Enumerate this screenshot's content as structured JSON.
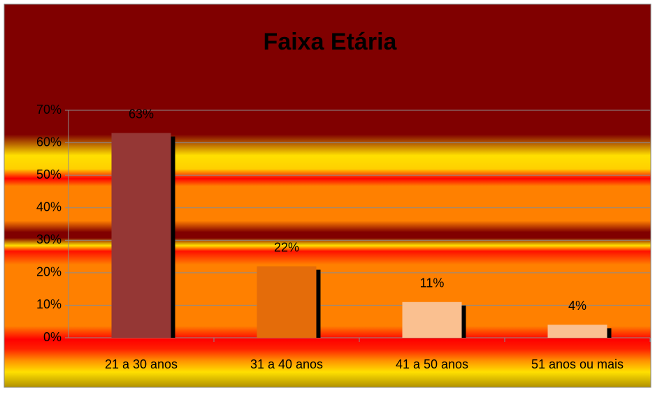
{
  "chart_data": {
    "type": "bar",
    "title": "Faixa Etária",
    "categories": [
      "21 a 30 anos",
      "31 a 40 anos",
      "41 a 50 anos",
      "51 anos ou mais"
    ],
    "values": [
      63,
      22,
      11,
      4
    ],
    "value_labels": [
      "63%",
      "22%",
      "11%",
      "4%"
    ],
    "colors": [
      "#953735",
      "#e46c0a",
      "#fac090",
      "#fac090"
    ],
    "ylim": [
      0,
      70
    ],
    "yticks": [
      {
        "value": 0,
        "label": "0%"
      },
      {
        "value": 10,
        "label": "10%"
      },
      {
        "value": 20,
        "label": "20%"
      },
      {
        "value": 30,
        "label": "30%"
      },
      {
        "value": 40,
        "label": "40%"
      },
      {
        "value": 50,
        "label": "50%"
      },
      {
        "value": 60,
        "label": "60%"
      },
      {
        "value": 70,
        "label": "70%"
      }
    ],
    "grid": true
  }
}
